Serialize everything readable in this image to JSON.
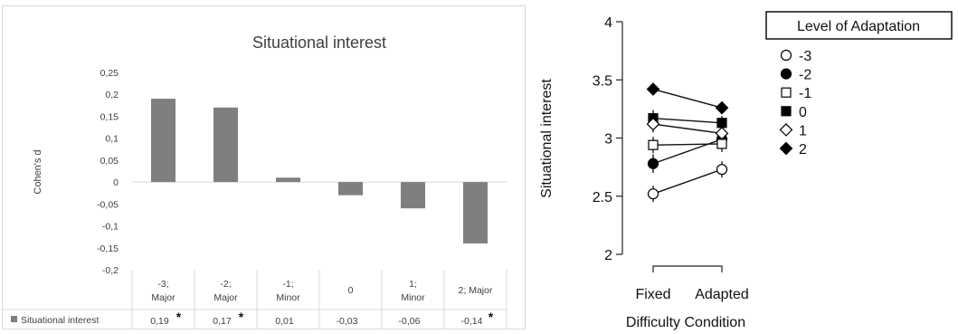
{
  "chart_data": [
    {
      "type": "bar",
      "title": "Situational interest",
      "ylabel": "Cohen's d",
      "xlabel": "",
      "ylim": [
        -0.2,
        0.25
      ],
      "ytick_labels": [
        "0,25",
        "0,2",
        "0,15",
        "0,1",
        "0,05",
        "0",
        "-0,05",
        "-0,1",
        "-0,15",
        "-0,2"
      ],
      "ytick_values": [
        0.25,
        0.2,
        0.15,
        0.1,
        0.05,
        0,
        -0.05,
        -0.1,
        -0.15,
        -0.2
      ],
      "categories": [
        [
          "-3;",
          "Major"
        ],
        [
          "-2;",
          "Major"
        ],
        [
          "-1;",
          "Minor"
        ],
        [
          "0"
        ],
        [
          "1;",
          "Minor"
        ],
        [
          "2; Major"
        ]
      ],
      "series": [
        {
          "name": "Situational interest",
          "values": [
            0.19,
            0.17,
            0.01,
            -0.03,
            -0.06,
            -0.14
          ],
          "value_labels": [
            "0,19",
            "0,17",
            "0,01",
            "-0,03",
            "-0,06",
            "-0,14"
          ],
          "significant": [
            true,
            true,
            false,
            false,
            false,
            true
          ],
          "color": "#7f7f7f"
        }
      ],
      "significance_marker": "*",
      "grid": false,
      "legend": "data-table"
    },
    {
      "type": "line",
      "title": "",
      "xlabel": "Difficulty Condition",
      "ylabel": "Situational interest",
      "x": [
        "Fixed",
        "Adapted"
      ],
      "ylim": [
        2,
        4
      ],
      "yticks": [
        "2",
        "2.5",
        "3",
        "3.5",
        "4"
      ],
      "ytick_values": [
        2,
        2.5,
        3,
        3.5,
        4
      ],
      "legend_title": "Level of Adaptation",
      "legend": "right",
      "series": [
        {
          "name": "-3",
          "marker": "circle-open",
          "values": [
            2.52,
            2.73
          ],
          "errors": [
            0.07,
            0.07
          ]
        },
        {
          "name": "-2",
          "marker": "circle-filled",
          "values": [
            2.78,
            2.99
          ],
          "errors": [
            0.08,
            0.07
          ]
        },
        {
          "name": "-1",
          "marker": "square-open",
          "values": [
            2.94,
            2.95
          ],
          "errors": [
            0.07,
            0.07
          ]
        },
        {
          "name": "0",
          "marker": "square-filled",
          "values": [
            3.17,
            3.13
          ],
          "errors": [
            0.07,
            0.06
          ]
        },
        {
          "name": "1",
          "marker": "diamond-open",
          "values": [
            3.12,
            3.04
          ],
          "errors": [
            0.07,
            0.06
          ]
        },
        {
          "name": "2",
          "marker": "diamond-filled",
          "values": [
            3.42,
            3.26
          ],
          "errors": [
            0.03,
            0.03
          ]
        }
      ]
    }
  ]
}
